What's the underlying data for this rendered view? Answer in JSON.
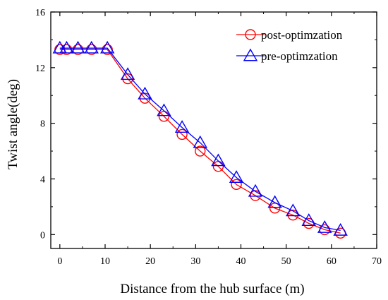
{
  "chart_data": {
    "type": "line",
    "title": "",
    "xlabel": "Distance from the hub surface (m)",
    "ylabel": "Twist angle(deg)",
    "xlim": [
      -2,
      70
    ],
    "ylim": [
      -1,
      16
    ],
    "xticks": [
      0,
      10,
      20,
      30,
      40,
      50,
      60,
      70
    ],
    "yticks": [
      0,
      4,
      8,
      12,
      16
    ],
    "legend_position": "top-right",
    "grid": false,
    "series": [
      {
        "name": "post-optimzation",
        "color": "#ff0000",
        "marker": "circle",
        "x": [
          0,
          1.5,
          4,
          7,
          10.5,
          15,
          18.8,
          23,
          27,
          31,
          35,
          39,
          43.2,
          47.5,
          51.5,
          55,
          58.5,
          62
        ],
        "y": [
          13.3,
          13.3,
          13.3,
          13.3,
          13.3,
          11.2,
          9.8,
          8.5,
          7.2,
          6.0,
          4.9,
          3.6,
          2.8,
          1.9,
          1.4,
          0.8,
          0.35,
          0.1
        ]
      },
      {
        "name": "pre-optimzation",
        "color": "#0000ff",
        "marker": "triangle",
        "x": [
          0,
          1.5,
          4,
          7,
          10.5,
          15,
          18.8,
          23,
          27,
          31,
          35,
          39,
          43.2,
          47.5,
          51.5,
          55,
          58.5,
          62
        ],
        "y": [
          13.4,
          13.4,
          13.4,
          13.4,
          13.4,
          11.5,
          10.1,
          8.9,
          7.7,
          6.6,
          5.3,
          4.1,
          3.1,
          2.3,
          1.7,
          1.0,
          0.5,
          0.3
        ]
      }
    ]
  }
}
